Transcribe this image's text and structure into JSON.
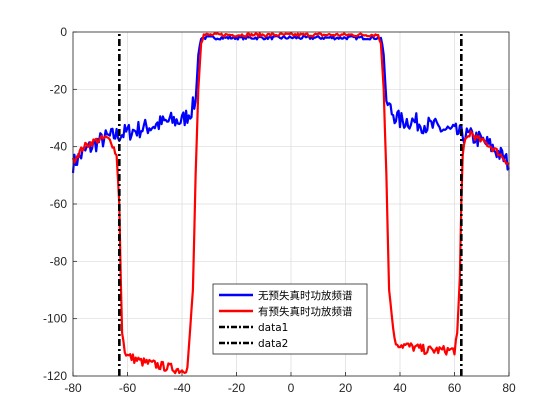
{
  "chart_data": {
    "type": "line",
    "title": "",
    "xlabel": "",
    "ylabel": "",
    "xlim": [
      -80,
      80
    ],
    "ylim": [
      -120,
      0
    ],
    "xticks": [
      -80,
      -60,
      -40,
      -20,
      0,
      20,
      40,
      60,
      80
    ],
    "yticks": [
      0,
      -20,
      -40,
      -60,
      -80,
      -100,
      -120
    ],
    "grid": true,
    "legend_position": "bottom-center",
    "series": [
      {
        "name": "无预失真时功放频谱",
        "color": "#0000ff",
        "style": "solid",
        "x": [
          -80,
          -76,
          -72,
          -68,
          -64,
          -60,
          -56,
          -52,
          -48,
          -44,
          -40,
          -37,
          -35,
          -34,
          -33,
          -30,
          -20,
          -10,
          0,
          10,
          20,
          30,
          33,
          34,
          35,
          37,
          40,
          44,
          48,
          52,
          56,
          60,
          64,
          68,
          72,
          76,
          80
        ],
        "y": [
          -46,
          -42,
          -39,
          -37,
          -36,
          -35,
          -34,
          -33,
          -32,
          -31,
          -31,
          -28,
          -24,
          -8,
          -2,
          -2,
          -2,
          -2,
          -2,
          -2,
          -2,
          -2,
          -2,
          -8,
          -24,
          -28,
          -31,
          -31,
          -32,
          -33,
          -34,
          -35,
          -36,
          -37,
          -39,
          -42,
          -46
        ]
      },
      {
        "name": "有预失真时功放频谱",
        "color": "#ff0000",
        "style": "solid",
        "x": [
          -80,
          -76,
          -72,
          -68,
          -66,
          -64,
          -63,
          -62.5,
          -62,
          -61,
          -60,
          -55,
          -50,
          -45,
          -40,
          -38,
          -36,
          -35,
          -34,
          -33,
          -32,
          -30,
          -20,
          -10,
          0,
          10,
          20,
          30,
          32,
          33,
          34,
          35,
          36,
          38,
          40,
          45,
          50,
          55,
          60,
          61,
          62,
          62.5,
          63,
          64,
          66,
          68,
          72,
          76,
          80
        ],
        "y": [
          -45,
          -40,
          -38,
          -37,
          -38,
          -43,
          -60,
          -85,
          -105,
          -111,
          -113,
          -115,
          -116,
          -117,
          -118,
          -117,
          -90,
          -50,
          -20,
          -4,
          -1,
          -1,
          -1,
          -1,
          -1,
          -1,
          -1,
          -1,
          -1,
          -4,
          -20,
          -50,
          -90,
          -108,
          -109,
          -110,
          -111,
          -111,
          -111,
          -105,
          -85,
          -60,
          -43,
          -38,
          -35,
          -37,
          -39,
          -42,
          -46
        ]
      },
      {
        "name": "data1",
        "color": "#000000",
        "style": "dashdot",
        "x": [
          -63,
          -63
        ],
        "y": [
          -120,
          0
        ]
      },
      {
        "name": "data2",
        "color": "#000000",
        "style": "dashdot",
        "x": [
          62.5,
          62.5
        ],
        "y": [
          -120,
          0
        ]
      }
    ]
  }
}
